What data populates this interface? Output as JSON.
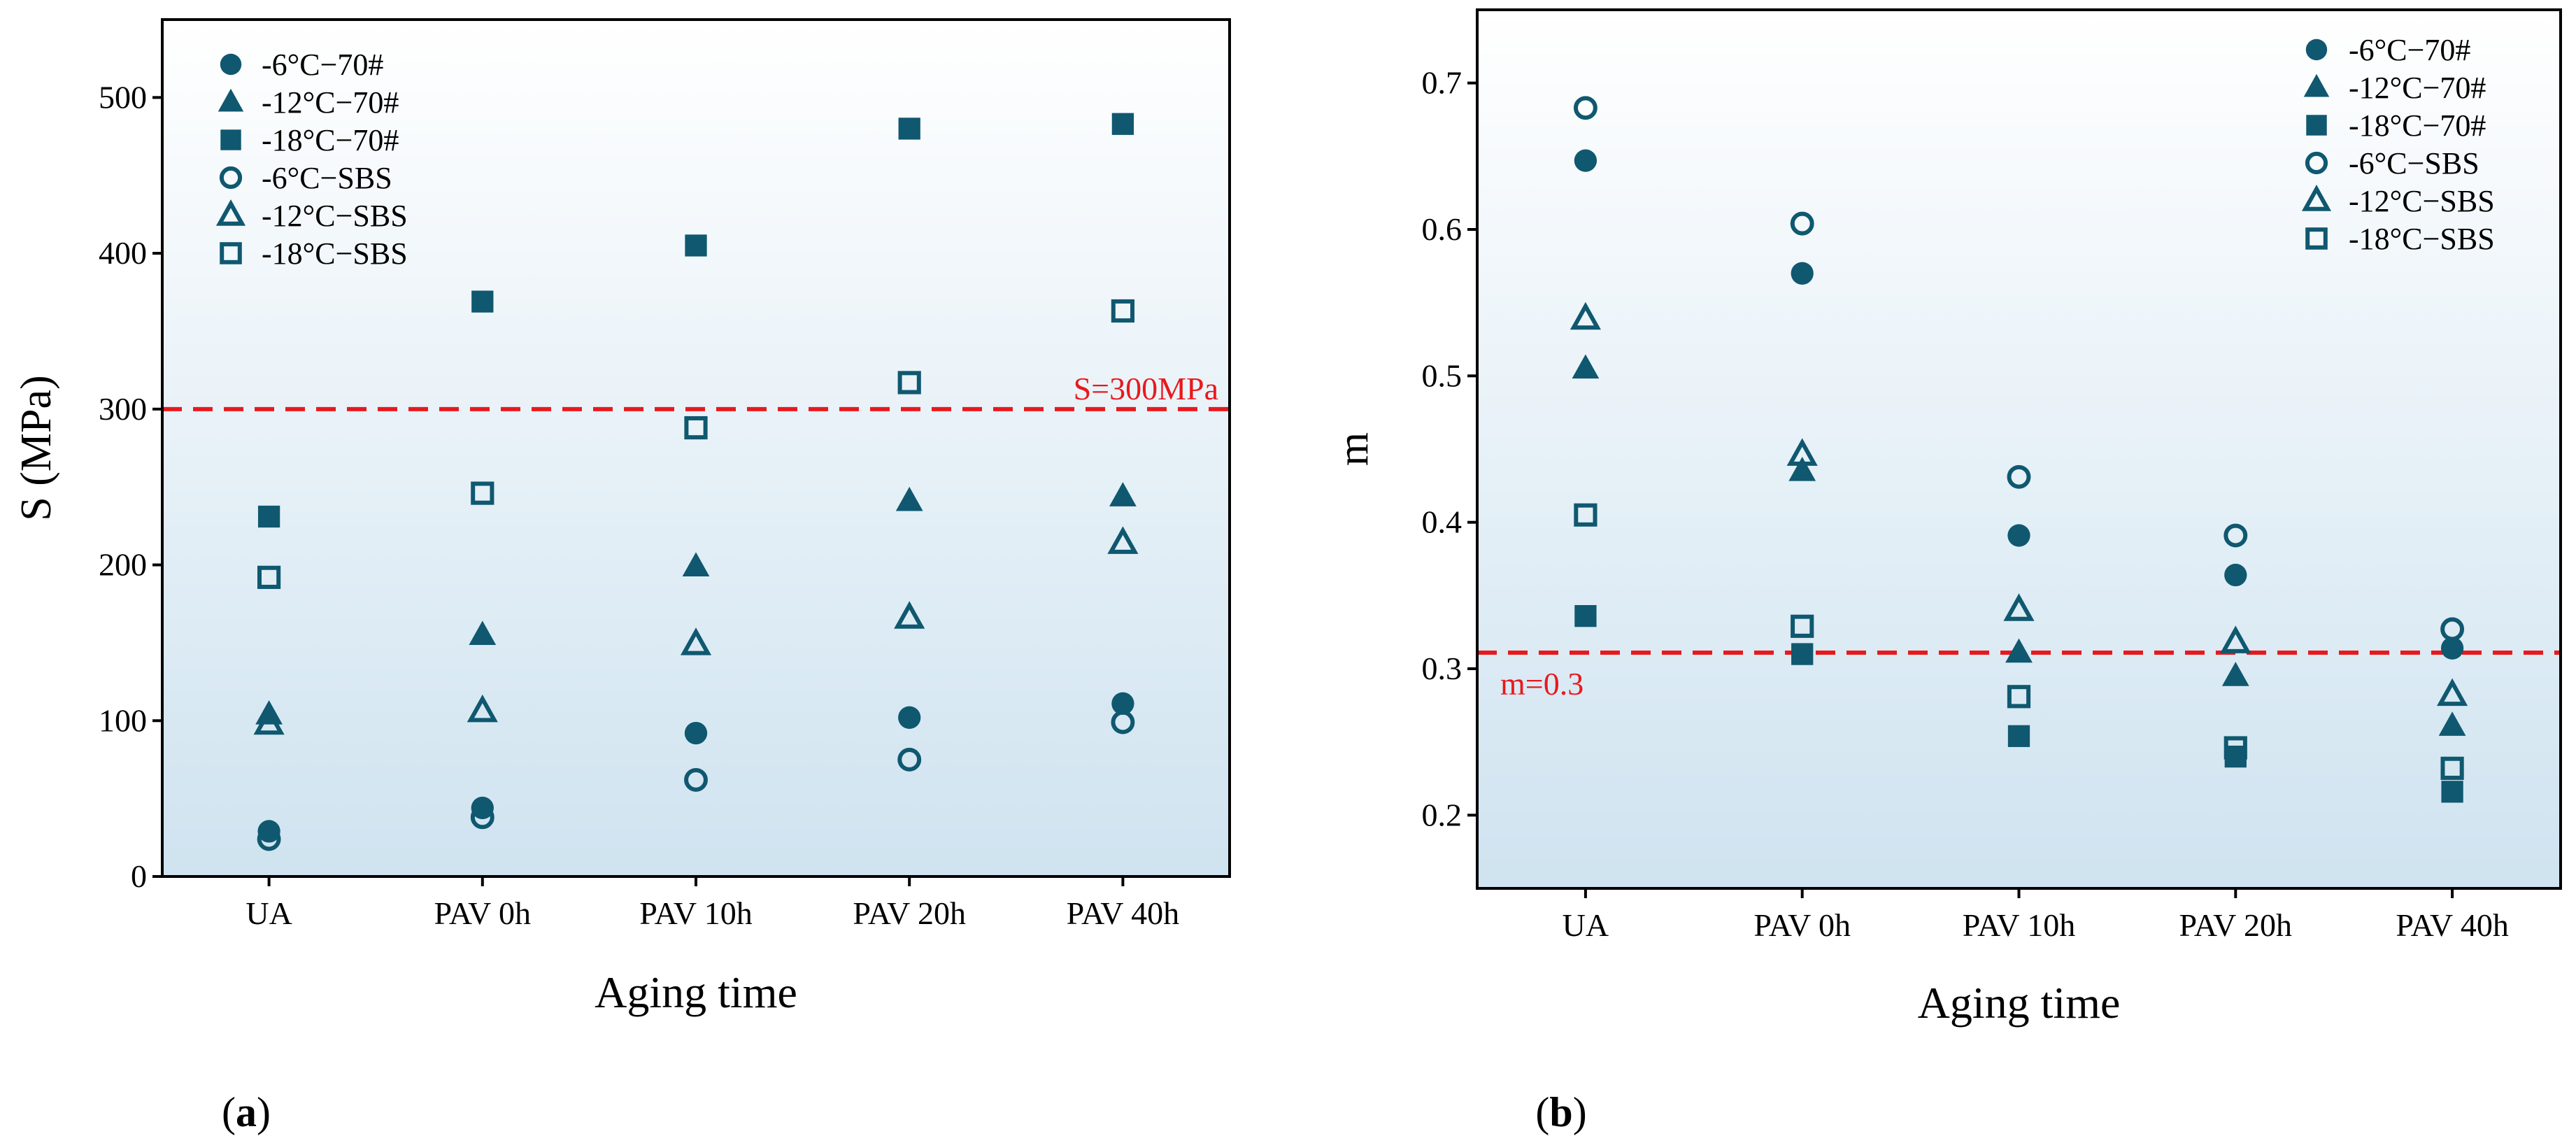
{
  "colors": {
    "marker": "#0f5870",
    "threshold": "#e8191d",
    "axis": "#000000",
    "bg_top": "#ffffff",
    "bg_bottom": "#cfe3f0"
  },
  "chart_data": [
    {
      "type": "scatter",
      "panel_label": "(a)",
      "title": "",
      "xlabel": "Aging time",
      "ylabel": "S (MPa)",
      "categories": [
        "UA",
        "PAV 0h",
        "PAV 10h",
        "PAV 20h",
        "PAV 40h"
      ],
      "ylim": [
        0,
        550
      ],
      "yticks": [
        0,
        100,
        200,
        300,
        400,
        500
      ],
      "tick_labels": [
        "0",
        "100",
        "200",
        "300",
        "400",
        "500"
      ],
      "threshold": {
        "value": 300,
        "label": "S=300MPa"
      },
      "legend_position": "top-left",
      "series": [
        {
          "name": "-6°C−70#",
          "marker": "circle",
          "filled": true,
          "values": [
            29,
            44,
            92,
            102,
            111
          ]
        },
        {
          "name": "-12°C−70#",
          "marker": "triangle",
          "filled": true,
          "values": [
            104,
            155,
            199,
            241,
            244
          ]
        },
        {
          "name": "-18°C−70#",
          "marker": "square",
          "filled": true,
          "values": [
            231,
            369,
            405,
            480,
            483
          ]
        },
        {
          "name": "-6°C−SBS",
          "marker": "circle",
          "filled": false,
          "values": [
            24,
            38,
            62,
            75,
            99
          ]
        },
        {
          "name": "-12°C−SBS",
          "marker": "triangle",
          "filled": false,
          "values": [
            98,
            106,
            149,
            166,
            214
          ]
        },
        {
          "name": "-18°C−SBS",
          "marker": "square",
          "filled": false,
          "values": [
            192,
            246,
            288,
            317,
            363
          ]
        }
      ]
    },
    {
      "type": "scatter",
      "panel_label": "(b)",
      "title": "",
      "xlabel": "Aging time",
      "ylabel": "m",
      "categories": [
        "UA",
        "PAV 0h",
        "PAV 10h",
        "PAV 20h",
        "PAV 40h"
      ],
      "ylim": [
        0.15,
        0.75
      ],
      "yticks": [
        0.2,
        0.3,
        0.4,
        0.5,
        0.6,
        0.7
      ],
      "tick_labels": [
        "0.2",
        "0.3",
        "0.4",
        "0.5",
        "0.6",
        "0.7"
      ],
      "threshold": {
        "value": 0.311,
        "label": "m=0.3"
      },
      "legend_position": "top-right",
      "series": [
        {
          "name": "-6°C−70#",
          "marker": "circle",
          "filled": true,
          "values": [
            0.647,
            0.57,
            0.391,
            0.364,
            0.314
          ]
        },
        {
          "name": "-12°C−70#",
          "marker": "triangle",
          "filled": true,
          "values": [
            0.505,
            0.435,
            0.311,
            0.295,
            0.261
          ]
        },
        {
          "name": "-18°C−70#",
          "marker": "square",
          "filled": true,
          "values": [
            0.336,
            0.31,
            0.254,
            0.24,
            0.216
          ]
        },
        {
          "name": "-6°C−SBS",
          "marker": "circle",
          "filled": false,
          "values": [
            0.683,
            0.604,
            0.431,
            0.391,
            0.327
          ]
        },
        {
          "name": "-12°C−SBS",
          "marker": "triangle",
          "filled": false,
          "values": [
            0.539,
            0.446,
            0.34,
            0.318,
            0.282
          ]
        },
        {
          "name": "-18°C−SBS",
          "marker": "square",
          "filled": false,
          "values": [
            0.405,
            0.329,
            0.281,
            0.246,
            0.232
          ]
        }
      ]
    }
  ]
}
